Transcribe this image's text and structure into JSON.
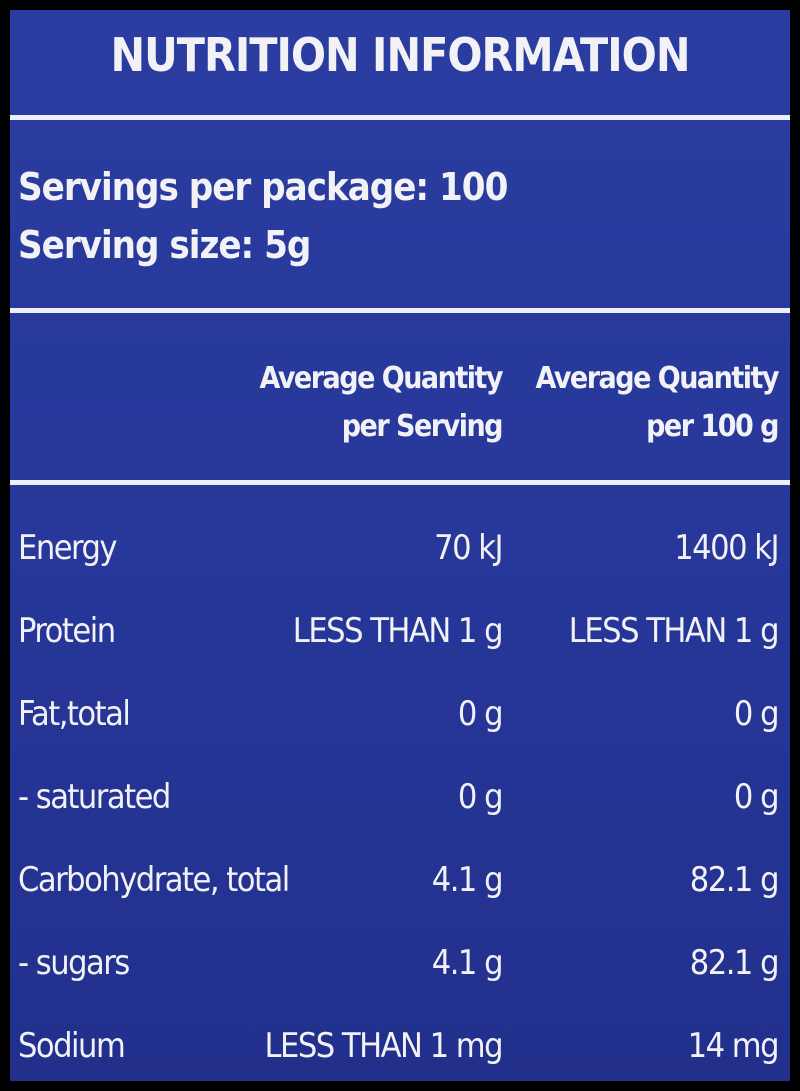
{
  "header": {
    "title": "NUTRITION INFORMATION"
  },
  "servings": [
    "Servings per package: 100",
    "Serving size: 5g"
  ],
  "table": {
    "columns": [
      "",
      "Average Quantity per Serving",
      "Average Quantity per 100 g"
    ],
    "rows": [
      [
        "Energy",
        "70 kJ",
        "1400 kJ"
      ],
      [
        "Protein",
        "LESS THAN 1 g",
        "LESS THAN 1 g"
      ],
      [
        "Fat,total",
        "0 g",
        "0 g"
      ],
      [
        "- saturated",
        "0 g",
        "0 g"
      ],
      [
        "Carbohydrate, total",
        "4.1 g",
        "82.1 g"
      ],
      [
        "- sugars",
        "4.1 g",
        "82.1 g"
      ],
      [
        "Sodium",
        "LESS THAN 1 mg",
        "14 mg"
      ]
    ]
  }
}
